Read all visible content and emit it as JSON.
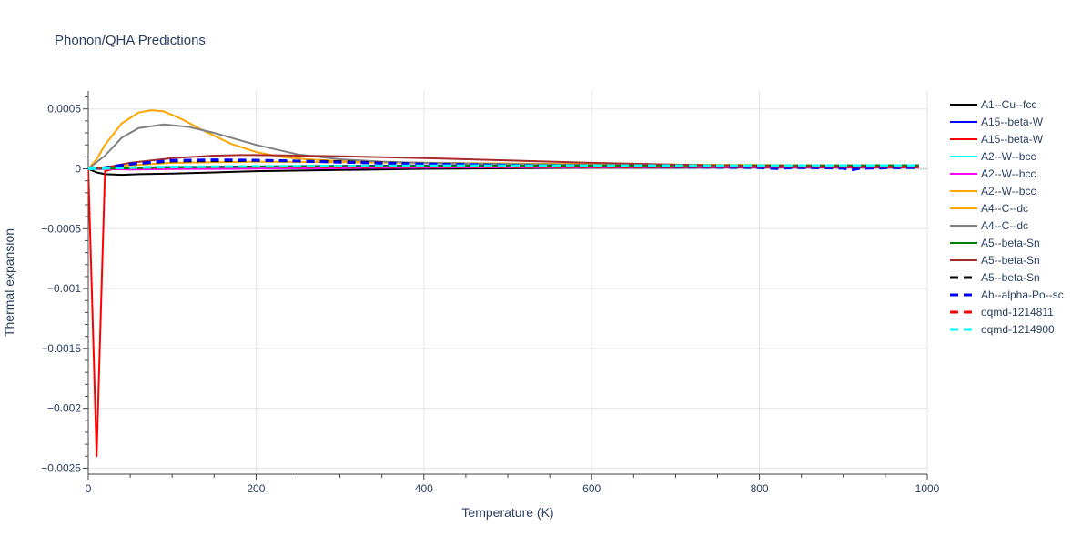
{
  "chart_data": {
    "type": "line",
    "title": "Phonon/QHA Predictions",
    "xlabel": "Temperature (K)",
    "ylabel": "Thermal expansion",
    "xlim": [
      0,
      1000
    ],
    "ylim": [
      -0.00255,
      0.00065
    ],
    "xticks": [
      0,
      200,
      400,
      600,
      800,
      1000
    ],
    "xtick_labels": [
      "0",
      "200",
      "400",
      "600",
      "800",
      "1000"
    ],
    "yticks": [
      0.0005,
      0,
      -0.0005,
      -0.001,
      -0.0015,
      -0.002,
      -0.0025
    ],
    "ytick_labels": [
      "0.0005",
      "0",
      "−0.0005",
      "−0.001",
      "−0.0015",
      "−0.002",
      "−0.0025"
    ],
    "grid": true,
    "legend_position": "right",
    "series": [
      {
        "name": "A1--Cu--fcc",
        "color": "#000000",
        "dash": "solid",
        "x": [
          0,
          10,
          20,
          40,
          60,
          100,
          150,
          200,
          300,
          400,
          500,
          600,
          700,
          800,
          900,
          990
        ],
        "y": [
          0,
          -3e-05,
          -4.5e-05,
          -5e-05,
          -4.5e-05,
          -4e-05,
          -3e-05,
          -2e-05,
          -1e-05,
          0,
          5e-06,
          1e-05,
          1e-05,
          1.2e-05,
          1.2e-05,
          1.2e-05
        ]
      },
      {
        "name": "A15--beta-W",
        "color": "#0000ff",
        "dash": "solid",
        "x": [
          0,
          20,
          50,
          100,
          200,
          300,
          400,
          500,
          600,
          700,
          800,
          900,
          990
        ],
        "y": [
          0,
          5e-06,
          1e-05,
          1.5e-05,
          2e-05,
          2.5e-05,
          2.8e-05,
          3e-05,
          3e-05,
          3e-05,
          3e-05,
          3e-05,
          3e-05
        ]
      },
      {
        "name": "A15--beta-W",
        "color": "#ff0000",
        "dash": "solid",
        "x": [
          0,
          5,
          10,
          15,
          20,
          30,
          60,
          100,
          200,
          300,
          400,
          500,
          600,
          700,
          800,
          900,
          990
        ],
        "y": [
          0,
          -0.0012,
          -0.0024,
          -0.0012,
          -2e-05,
          0,
          5e-06,
          1e-05,
          1.2e-05,
          1.2e-05,
          1.2e-05,
          1.2e-05,
          1.2e-05,
          1.2e-05,
          1.2e-05,
          1.2e-05,
          1.2e-05
        ]
      },
      {
        "name": "A2--W--bcc",
        "color": "#00ffff",
        "dash": "solid",
        "x": [
          0,
          50,
          100,
          200,
          300,
          400,
          500,
          600,
          700,
          800,
          900,
          990
        ],
        "y": [
          0,
          8e-06,
          1.2e-05,
          1.5e-05,
          1.7e-05,
          1.8e-05,
          1.8e-05,
          1.9e-05,
          1.9e-05,
          2e-05,
          2e-05,
          2e-05
        ]
      },
      {
        "name": "A2--W--bcc",
        "color": "#ff00ff",
        "dash": "solid",
        "x": [
          0,
          50,
          100,
          200,
          300,
          400,
          500,
          600,
          700,
          800,
          900,
          990
        ],
        "y": [
          0,
          -5e-06,
          -2e-06,
          2e-06,
          6e-06,
          1e-05,
          1.2e-05,
          1.4e-05,
          1.5e-05,
          1.6e-05,
          1.6e-05,
          1.7e-05
        ]
      },
      {
        "name": "A2--W--bcc",
        "color": "#ffa500",
        "dash": "solid",
        "x": [
          0,
          50,
          100,
          200,
          300,
          400,
          500,
          600,
          700,
          800,
          900,
          990
        ],
        "y": [
          0,
          3e-05,
          5e-05,
          6e-05,
          5.5e-05,
          5e-05,
          4.5e-05,
          4e-05,
          3.5e-05,
          3.2e-05,
          3e-05,
          2.8e-05
        ]
      },
      {
        "name": "A4--C--dc",
        "color": "#ffa500",
        "dash": "solid",
        "x": [
          0,
          10,
          20,
          40,
          60,
          75,
          90,
          110,
          140,
          170,
          200,
          230,
          260,
          300,
          350,
          400,
          500,
          600,
          700,
          800,
          900,
          990
        ],
        "y": [
          0,
          8e-05,
          0.0002,
          0.00038,
          0.00047,
          0.00049,
          0.00048,
          0.00042,
          0.00031,
          0.00021,
          0.00014,
          0.0001,
          8e-05,
          6.5e-05,
          5.5e-05,
          5e-05,
          4e-05,
          3.2e-05,
          2.6e-05,
          2.2e-05,
          2e-05,
          1.8e-05
        ]
      },
      {
        "name": "A4--C--dc",
        "color": "#808080",
        "dash": "solid",
        "x": [
          0,
          20,
          40,
          60,
          90,
          120,
          150,
          200,
          250,
          300,
          350,
          400,
          500,
          600,
          700,
          800,
          900,
          990
        ],
        "y": [
          0,
          0.00011,
          0.00026,
          0.00034,
          0.00037,
          0.00035,
          0.0003,
          0.0002,
          0.00012,
          8e-05,
          6e-05,
          5e-05,
          4e-05,
          3.3e-05,
          3e-05,
          2.8e-05,
          2.6e-05,
          2.5e-05
        ]
      },
      {
        "name": "A5--beta-Sn",
        "color": "#008000",
        "dash": "solid",
        "x": [
          0,
          50,
          100,
          200,
          300,
          400,
          500,
          600,
          700,
          800,
          900,
          990
        ],
        "y": [
          0,
          5e-06,
          1.2e-05,
          1.8e-05,
          2.2e-05,
          2.5e-05,
          2.6e-05,
          2.7e-05,
          2.8e-05,
          2.9e-05,
          2.9e-05,
          3e-05
        ]
      },
      {
        "name": "A5--beta-Sn",
        "color": "#a52a2a",
        "dash": "solid",
        "x": [
          0,
          20,
          50,
          100,
          150,
          180,
          200,
          250,
          300,
          400,
          500,
          600,
          700,
          800,
          900,
          990
        ],
        "y": [
          0,
          1e-05,
          5e-05,
          9e-05,
          0.00011,
          0.000115,
          0.000115,
          0.00011,
          0.000105,
          9e-05,
          7e-05,
          5e-05,
          3.5e-05,
          2.5e-05,
          2e-05,
          1.8e-05
        ]
      },
      {
        "name": "A5--beta-Sn",
        "color": "#000000",
        "dash": "dash",
        "x": [
          0,
          20,
          50,
          100,
          200,
          300,
          400,
          500,
          600,
          700,
          800,
          900,
          990
        ],
        "y": [
          0,
          1e-05,
          4e-05,
          6.5e-05,
          7e-05,
          6e-05,
          4e-05,
          3e-05,
          2.5e-05,
          2e-05,
          1.8e-05,
          1.7e-05,
          1.6e-05
        ]
      },
      {
        "name": "Ah--alpha-Po--sc",
        "color": "#0000ff",
        "dash": "dash",
        "x": [
          0,
          20,
          50,
          100,
          150,
          200,
          250,
          300,
          400,
          500,
          600,
          700,
          800,
          820,
          840,
          880,
          900,
          910,
          920,
          950,
          990
        ],
        "y": [
          0,
          1e-05,
          4e-05,
          7e-05,
          7.5e-05,
          7.2e-05,
          6.5e-05,
          5.5e-05,
          4e-05,
          3e-05,
          2.2e-05,
          1.5e-05,
          1e-05,
          2e-06,
          1e-05,
          8e-06,
          5e-06,
          -1e-05,
          5e-06,
          8e-06,
          1e-05
        ]
      },
      {
        "name": "oqmd-1214811",
        "color": "#ff0000",
        "dash": "dash",
        "x": [
          0,
          20,
          50,
          100,
          200,
          300,
          400,
          500,
          600,
          700,
          800,
          900,
          990
        ],
        "y": [
          0,
          3e-06,
          8e-06,
          1.2e-05,
          1.5e-05,
          1.7e-05,
          1.8e-05,
          1.8e-05,
          1.9e-05,
          1.9e-05,
          2e-05,
          2e-05,
          2e-05
        ]
      },
      {
        "name": "oqmd-1214900",
        "color": "#00ffff",
        "dash": "dash",
        "x": [
          0,
          20,
          50,
          100,
          200,
          300,
          400,
          500,
          600,
          700,
          800,
          900,
          990
        ],
        "y": [
          0,
          4e-06,
          1e-05,
          1.5e-05,
          2e-05,
          2.3e-05,
          2.5e-05,
          2.6e-05,
          2.6e-05,
          2.7e-05,
          2.7e-05,
          2.7e-05,
          2.7e-05
        ]
      }
    ]
  }
}
